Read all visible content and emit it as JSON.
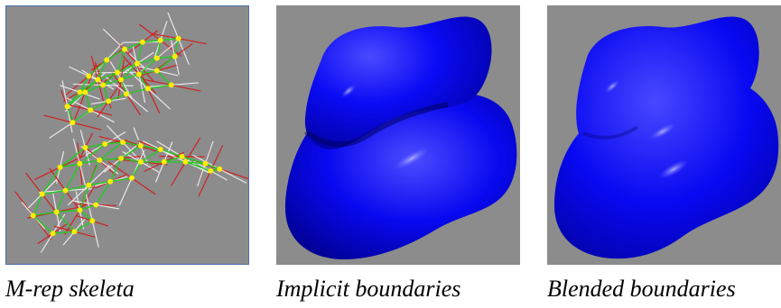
{
  "figure": {
    "panels": [
      {
        "id": "mrep",
        "caption": "M-rep skeleta",
        "background_color": "#8c8c8c"
      },
      {
        "id": "implicit",
        "caption": "Implicit boundaries",
        "background_color": "#8c8c8c"
      },
      {
        "id": "blended",
        "caption": "Blended boundaries",
        "background_color": "#8c8c8c"
      }
    ],
    "colors": {
      "surface": "#0000ff",
      "mesh_lines": "#22cc22",
      "atom_points": "#ffee00",
      "spoke_red": "#d22020",
      "spoke_white": "#e8e8e8",
      "panel_border": "#4f6fb0"
    }
  }
}
